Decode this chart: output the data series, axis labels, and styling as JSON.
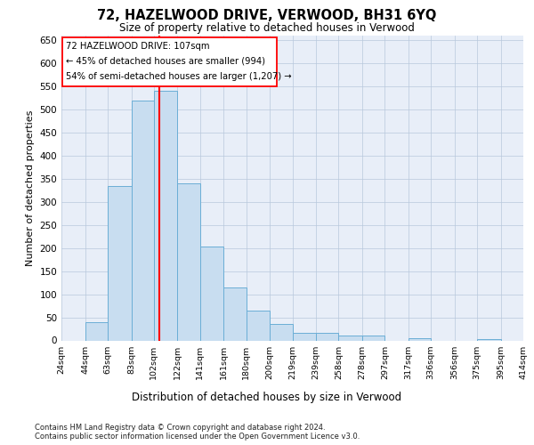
{
  "title1": "72, HAZELWOOD DRIVE, VERWOOD, BH31 6YQ",
  "title2": "Size of property relative to detached houses in Verwood",
  "xlabel": "Distribution of detached houses by size in Verwood",
  "ylabel": "Number of detached properties",
  "footer1": "Contains HM Land Registry data © Crown copyright and database right 2024.",
  "footer2": "Contains public sector information licensed under the Open Government Licence v3.0.",
  "annotation_line1": "72 HAZELWOOD DRIVE: 107sqm",
  "annotation_line2": "← 45% of detached houses are smaller (994)",
  "annotation_line3": "54% of semi-detached houses are larger (1,207) →",
  "bar_color": "#c8ddf0",
  "bar_edge_color": "#6baed6",
  "red_line_x": 107,
  "bin_edges": [
    24,
    44,
    63,
    83,
    102,
    122,
    141,
    161,
    180,
    200,
    219,
    239,
    258,
    278,
    297,
    317,
    336,
    356,
    375,
    395,
    414
  ],
  "bar_heights": [
    0,
    40,
    335,
    520,
    540,
    340,
    203,
    115,
    65,
    35,
    17,
    17,
    10,
    10,
    0,
    5,
    0,
    0,
    2,
    0
  ],
  "ylim": [
    0,
    660
  ],
  "yticks": [
    0,
    50,
    100,
    150,
    200,
    250,
    300,
    350,
    400,
    450,
    500,
    550,
    600,
    650
  ],
  "axes_bg": "#e8eef8",
  "grid_color": "#b8c8dc"
}
